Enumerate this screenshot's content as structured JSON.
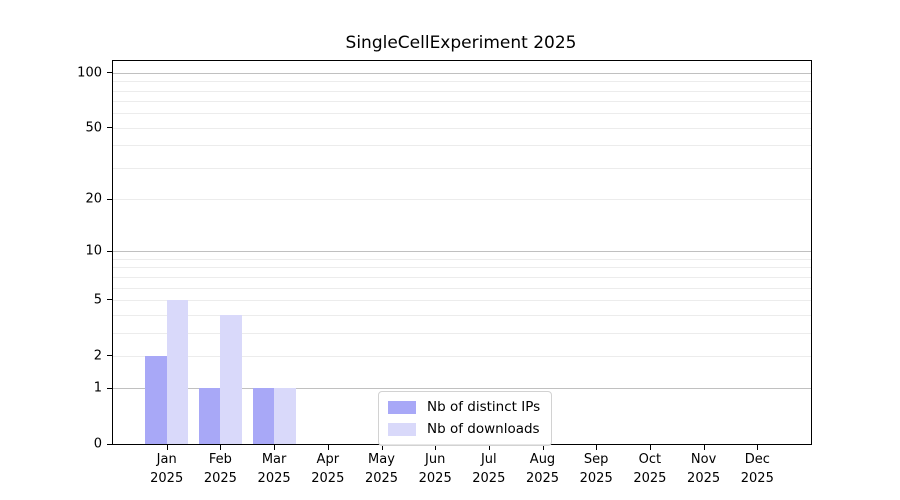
{
  "chart_data": {
    "type": "bar",
    "title": "SingleCellExperiment 2025",
    "categories": [
      "Jan 2025",
      "Feb 2025",
      "Mar 2025",
      "Apr 2025",
      "May 2025",
      "Jun 2025",
      "Jul 2025",
      "Aug 2025",
      "Sep 2025",
      "Oct 2025",
      "Nov 2025",
      "Dec 2025"
    ],
    "series": [
      {
        "name": "Nb of distinct IPs",
        "color": "#a8a8f7",
        "values": [
          2,
          1,
          1,
          0,
          0,
          0,
          0,
          0,
          0,
          0,
          0,
          0
        ]
      },
      {
        "name": "Nb of downloads",
        "color": "#d9d9fa",
        "values": [
          5,
          4,
          1,
          0,
          0,
          0,
          0,
          0,
          0,
          0,
          0,
          0
        ]
      }
    ],
    "xlabel": "",
    "ylabel": "",
    "y_scale": "log1p",
    "ylim": [
      0,
      116
    ],
    "yticks": [
      0,
      1,
      2,
      5,
      10,
      20,
      50,
      100
    ],
    "major_gridlines": [
      1,
      10,
      100
    ],
    "minor_gridlines": [
      2,
      3,
      4,
      5,
      6,
      7,
      8,
      9,
      20,
      30,
      40,
      50,
      60,
      70,
      80,
      90
    ],
    "grid": true,
    "legend_position": "lower center inside"
  },
  "colors": {
    "major_grid": "#c0c0c0",
    "minor_grid": "#ececec",
    "axis": "#000000",
    "background": "#ffffff"
  }
}
